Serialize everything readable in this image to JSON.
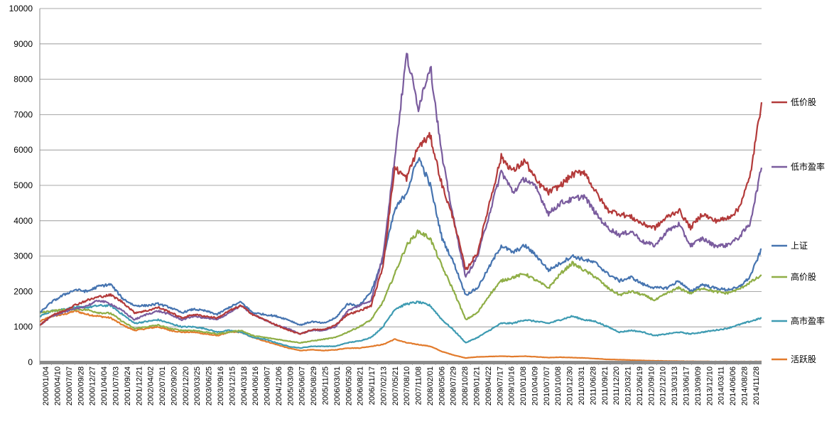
{
  "chart_data": {
    "type": "line",
    "title": "",
    "xlabel": "",
    "ylabel": "",
    "ylim": [
      0,
      10000
    ],
    "yticks": [
      0,
      1000,
      2000,
      3000,
      4000,
      5000,
      6000,
      7000,
      8000,
      9000,
      10000
    ],
    "grid": "horizontal",
    "legend_position": "right",
    "x_tick_labels": [
      "2000/01/04",
      "2000/04/10",
      "2000/07/07",
      "2000/09/28",
      "2000/12/27",
      "2001/04/04",
      "2001/07/03",
      "2001/09/24",
      "2001/12/21",
      "2002/04/02",
      "2002/07/01",
      "2002/09/20",
      "2002/12/20",
      "2003/03/25",
      "2003/06/25",
      "2003/09/16",
      "2003/12/15",
      "2004/03/18",
      "2004/06/16",
      "2004/09/07",
      "2004/12/06",
      "2005/03/09",
      "2005/06/07",
      "2005/08/29",
      "2005/11/25",
      "2006/03/01",
      "2006/05/30",
      "2006/08/21",
      "2006/11/17",
      "2007/02/13",
      "2007/05/21",
      "2007/08/10",
      "2007/11/08",
      "2008/02/01",
      "2008/05/06",
      "2008/07/29",
      "2008/10/28",
      "2009/01/21",
      "2009/04/22",
      "2009/07/17",
      "2009/10/16",
      "2010/01/08",
      "2010/04/09",
      "2010/07/07",
      "2010/10/08",
      "2010/12/30",
      "2011/03/31",
      "2011/06/28",
      "2011/09/21",
      "2011/12/20",
      "2012/03/21",
      "2012/06/19",
      "2012/09/10",
      "2012/12/10",
      "2013/03/13",
      "2013/06/17",
      "2013/09/09",
      "2013/12/10",
      "2014/03/11",
      "2014/06/06",
      "2014/08/28",
      "2014/11/28"
    ],
    "series": [
      {
        "name": "低价股",
        "color": "#B33A3A",
        "values": [
          1050,
          1320,
          1450,
          1620,
          1750,
          1850,
          1900,
          1700,
          1400,
          1450,
          1550,
          1420,
          1250,
          1350,
          1300,
          1250,
          1450,
          1600,
          1350,
          1200,
          1050,
          900,
          800,
          920,
          920,
          1050,
          1350,
          1450,
          1600,
          2700,
          5500,
          5200,
          6100,
          6400,
          5000,
          4000,
          2600,
          3100,
          4500,
          5800,
          5400,
          5700,
          5100,
          4800,
          5000,
          5300,
          5400,
          4800,
          4300,
          4200,
          4100,
          3900,
          3800,
          4100,
          4300,
          3800,
          4200,
          4000,
          4050,
          4300,
          5200,
          7350
        ]
      },
      {
        "name": "低市盈率",
        "color": "#7A5C9E",
        "values": [
          1050,
          1300,
          1420,
          1500,
          1600,
          1750,
          1650,
          1450,
          1200,
          1350,
          1450,
          1350,
          1200,
          1300,
          1250,
          1200,
          1400,
          1600,
          1350,
          1200,
          1050,
          950,
          800,
          900,
          900,
          1000,
          1450,
          1600,
          1750,
          3000,
          5800,
          8700,
          7200,
          8400,
          5800,
          4000,
          2400,
          3000,
          4200,
          5400,
          4800,
          5200,
          4900,
          4200,
          4500,
          4600,
          4700,
          4200,
          3800,
          3600,
          3700,
          3400,
          3300,
          3700,
          3900,
          3300,
          3500,
          3300,
          3300,
          3500,
          3900,
          5500
        ]
      },
      {
        "name": "上证",
        "color": "#4674B0",
        "values": [
          1400,
          1700,
          1900,
          2050,
          2000,
          2150,
          2200,
          1800,
          1600,
          1600,
          1650,
          1550,
          1400,
          1500,
          1450,
          1350,
          1550,
          1700,
          1400,
          1350,
          1300,
          1200,
          1050,
          1150,
          1100,
          1250,
          1650,
          1600,
          2000,
          2900,
          4300,
          4800,
          5800,
          5000,
          3500,
          2800,
          1900,
          2100,
          2700,
          3300,
          3100,
          3300,
          3000,
          2600,
          2800,
          3000,
          2900,
          2800,
          2500,
          2300,
          2400,
          2200,
          2100,
          2100,
          2300,
          2000,
          2200,
          2100,
          2050,
          2100,
          2400,
          3200
        ]
      },
      {
        "name": "高价股",
        "color": "#8FAE46",
        "values": [
          1400,
          1450,
          1480,
          1500,
          1480,
          1400,
          1380,
          1150,
          950,
          1000,
          1050,
          950,
          900,
          900,
          850,
          800,
          850,
          900,
          750,
          700,
          650,
          600,
          550,
          600,
          650,
          700,
          850,
          1000,
          1200,
          1700,
          2500,
          3300,
          3700,
          3500,
          2700,
          2000,
          1200,
          1400,
          1900,
          2300,
          2400,
          2500,
          2300,
          2100,
          2500,
          2800,
          2600,
          2400,
          2100,
          1900,
          2000,
          1900,
          1750,
          1950,
          2100,
          1950,
          2100,
          2000,
          1950,
          2050,
          2250,
          2450
        ]
      },
      {
        "name": "高市盈率",
        "color": "#3E9BB2",
        "values": [
          1300,
          1450,
          1500,
          1550,
          1550,
          1600,
          1600,
          1350,
          1100,
          1150,
          1200,
          1100,
          1000,
          1000,
          950,
          850,
          900,
          850,
          700,
          650,
          550,
          450,
          400,
          450,
          450,
          450,
          550,
          600,
          700,
          1000,
          1500,
          1650,
          1700,
          1600,
          1200,
          900,
          550,
          700,
          900,
          1100,
          1100,
          1200,
          1150,
          1100,
          1200,
          1300,
          1200,
          1150,
          1000,
          850,
          900,
          850,
          750,
          800,
          850,
          800,
          850,
          900,
          950,
          1050,
          1150,
          1250
        ]
      },
      {
        "name": "活跃股",
        "color": "#E27B2C",
        "values": [
          1150,
          1300,
          1350,
          1450,
          1350,
          1300,
          1250,
          1050,
          900,
          950,
          1000,
          900,
          850,
          850,
          800,
          750,
          850,
          850,
          700,
          600,
          500,
          400,
          330,
          350,
          330,
          350,
          400,
          400,
          450,
          500,
          650,
          550,
          500,
          450,
          300,
          200,
          120,
          150,
          160,
          170,
          160,
          170,
          150,
          130,
          140,
          130,
          120,
          100,
          80,
          70,
          60,
          50,
          40,
          35,
          30,
          25,
          25,
          20,
          20,
          20,
          20,
          20
        ]
      }
    ]
  }
}
